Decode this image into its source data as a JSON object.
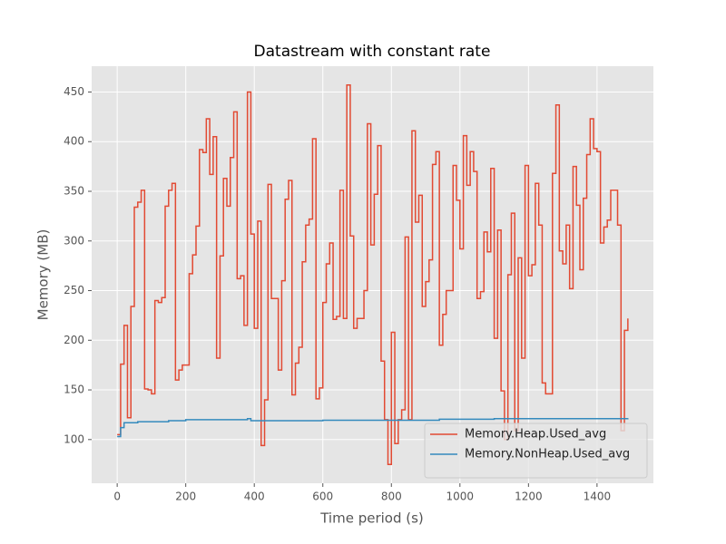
{
  "chart_data": {
    "type": "line",
    "drawstyle": "steps-post",
    "title": "Datastream with constant rate",
    "xlabel": "Time period (s)",
    "ylabel": "Memory (MB)",
    "xlim": [
      -74.5,
      1564.5
    ],
    "ylim": [
      56,
      476
    ],
    "xticks": [
      0,
      200,
      400,
      600,
      800,
      1000,
      1200,
      1400
    ],
    "yticks": [
      100,
      150,
      200,
      250,
      300,
      350,
      400,
      450
    ],
    "grid": true,
    "legend": "lower right",
    "series": [
      {
        "name": "Memory.Heap.Used_avg",
        "color": "#E24A33",
        "x": [
          0,
          10,
          20,
          30,
          40,
          50,
          60,
          70,
          80,
          90,
          100,
          110,
          120,
          130,
          140,
          150,
          160,
          170,
          180,
          190,
          200,
          210,
          220,
          230,
          240,
          250,
          260,
          270,
          280,
          290,
          300,
          310,
          320,
          330,
          340,
          350,
          360,
          370,
          380,
          390,
          400,
          410,
          420,
          430,
          440,
          450,
          460,
          470,
          480,
          490,
          500,
          510,
          520,
          530,
          540,
          550,
          560,
          570,
          580,
          590,
          600,
          610,
          620,
          630,
          640,
          650,
          660,
          670,
          680,
          690,
          700,
          710,
          720,
          730,
          740,
          750,
          760,
          770,
          780,
          790,
          800,
          810,
          820,
          830,
          840,
          850,
          860,
          870,
          880,
          890,
          900,
          910,
          920,
          930,
          940,
          950,
          960,
          970,
          980,
          990,
          1000,
          1010,
          1020,
          1030,
          1040,
          1050,
          1060,
          1070,
          1080,
          1090,
          1100,
          1110,
          1120,
          1130,
          1140,
          1150,
          1160,
          1170,
          1180,
          1190,
          1200,
          1210,
          1220,
          1230,
          1240,
          1250,
          1260,
          1270,
          1280,
          1290,
          1300,
          1310,
          1320,
          1330,
          1340,
          1350,
          1360,
          1370,
          1380,
          1390,
          1400,
          1410,
          1420,
          1430,
          1440,
          1450,
          1460,
          1470,
          1480,
          1490
        ],
        "values": [
          105,
          176,
          215,
          122,
          234,
          334,
          339,
          351,
          151,
          150,
          146,
          240,
          238,
          243,
          335,
          351,
          358,
          160,
          170,
          175,
          175,
          267,
          286,
          315,
          392,
          389,
          423,
          367,
          405,
          182,
          285,
          363,
          335,
          384,
          430,
          262,
          265,
          215,
          450,
          307,
          212,
          320,
          94,
          140,
          357,
          242,
          242,
          170,
          260,
          342,
          361,
          145,
          177,
          193,
          279,
          316,
          322,
          403,
          141,
          152,
          238,
          277,
          298,
          221,
          224,
          351,
          222,
          457,
          305,
          212,
          222,
          222,
          250,
          418,
          296,
          347,
          396,
          179,
          120,
          75,
          208,
          96,
          120,
          130,
          304,
          120,
          411,
          319,
          346,
          234,
          259,
          281,
          377,
          390,
          195,
          226,
          250,
          250,
          376,
          341,
          292,
          406,
          356,
          390,
          370,
          242,
          249,
          309,
          289,
          373,
          202,
          311,
          149,
          100,
          266,
          328,
          109,
          283,
          182,
          376,
          265,
          276,
          358,
          316,
          157,
          146,
          146,
          368,
          437,
          290,
          277,
          316,
          252,
          375,
          336,
          271,
          343,
          387,
          423,
          393,
          390,
          298,
          314,
          321,
          351,
          351,
          316,
          109,
          210,
          222
        ]
      },
      {
        "name": "Memory.NonHeap.Used_avg",
        "color": "#348ABD",
        "x": [
          0,
          10,
          20,
          60,
          150,
          200,
          380,
          390,
          600,
          940,
          1100,
          1490
        ],
        "values": [
          103,
          112,
          117,
          118,
          119,
          120,
          121,
          119,
          119.5,
          120.5,
          121,
          121.5
        ]
      }
    ]
  }
}
